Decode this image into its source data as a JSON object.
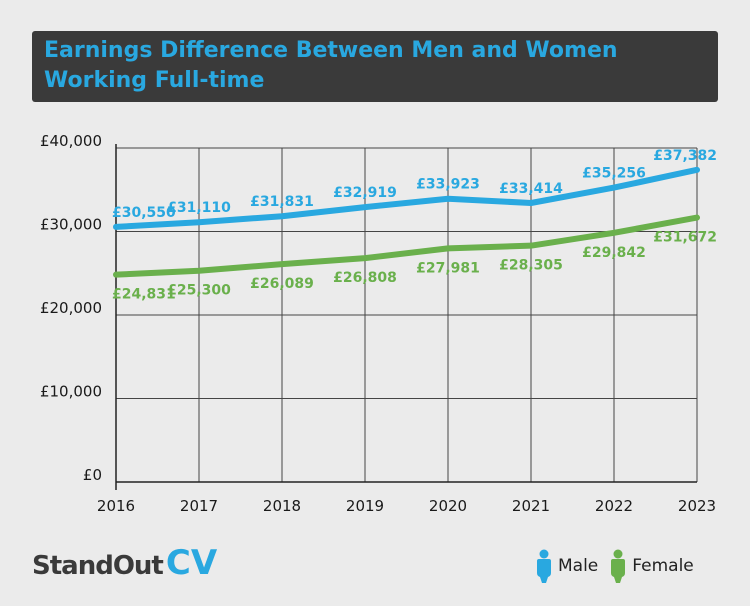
{
  "title": "Earnings Difference Between Men and Women Working Full-time",
  "brand": {
    "part1": "StandOut",
    "part2": "CV"
  },
  "colors": {
    "male": "#29a8e0",
    "female": "#6ab04c",
    "title_bg": "#3a3a3a",
    "grid": "#444444"
  },
  "legend": {
    "male": {
      "label": "Male",
      "icon": "person-icon"
    },
    "female": {
      "label": "Female",
      "icon": "person-icon"
    }
  },
  "chart_data": {
    "type": "line",
    "title": "Earnings Difference Between Men and Women Working Full-time",
    "x": [
      "2016",
      "2017",
      "2018",
      "2019",
      "2020",
      "2021",
      "2022",
      "2023"
    ],
    "ylim": [
      0,
      40000
    ],
    "yticks": [
      {
        "value": 0,
        "label": "£0"
      },
      {
        "value": 10000,
        "label": "£10,000"
      },
      {
        "value": 20000,
        "label": "£20,000"
      },
      {
        "value": 30000,
        "label": "£30,000"
      },
      {
        "value": 40000,
        "label": "£40,000"
      }
    ],
    "grid": true,
    "legend_position": "bottom-right",
    "series": [
      {
        "name": "Male",
        "key": "male",
        "values": [
          30550,
          31110,
          31831,
          32919,
          33923,
          33414,
          35256,
          37382
        ],
        "labels": [
          "£30,550",
          "£31,110",
          "£31,831",
          "£32,919",
          "£33,923",
          "£33,414",
          "£35,256",
          "£37,382"
        ]
      },
      {
        "name": "Female",
        "key": "female",
        "values": [
          24831,
          25300,
          26089,
          26808,
          27981,
          28305,
          29842,
          31672
        ],
        "labels": [
          "£24,831",
          "£25,300",
          "£26,089",
          "£26,808",
          "£27,981",
          "£28,305",
          "£29,842",
          "£31,672"
        ]
      }
    ]
  }
}
